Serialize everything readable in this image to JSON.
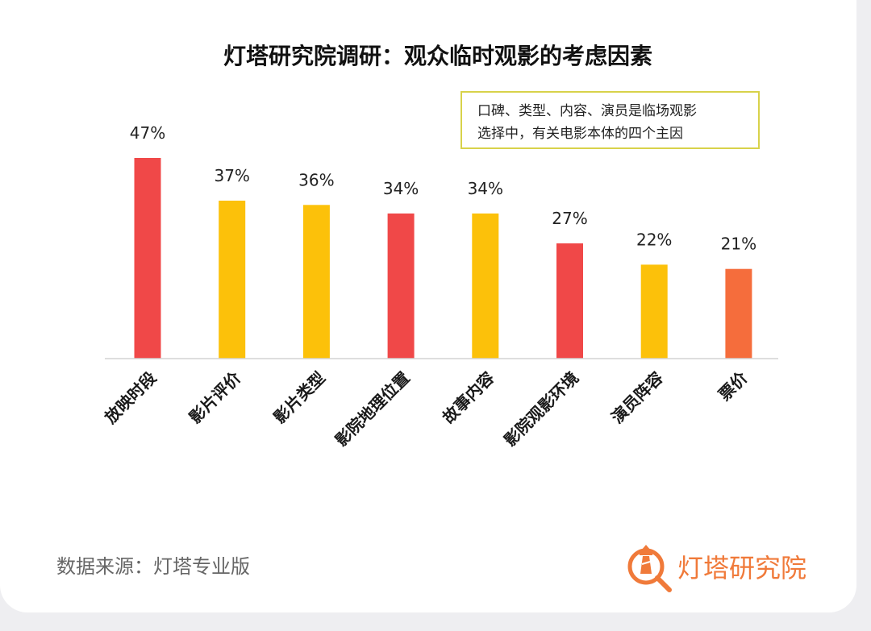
{
  "chart_data": {
    "type": "bar",
    "title": "灯塔研究院调研：观众临时观影的考虑因素",
    "categories": [
      "放映时段",
      "影片评价",
      "影片类型",
      "影院地理位置",
      "故事内容",
      "影院观影环境",
      "演员阵容",
      "票价"
    ],
    "values": [
      47,
      37,
      36,
      34,
      34,
      27,
      22,
      21
    ],
    "value_labels": [
      "47%",
      "37%",
      "36%",
      "34%",
      "34%",
      "27%",
      "22%",
      "21%"
    ],
    "bar_colors": [
      "#f04848",
      "#fcc10a",
      "#fcc10a",
      "#f04848",
      "#fcc10a",
      "#f04848",
      "#fcc10a",
      "#f56d3c"
    ],
    "ylim": [
      0,
      47
    ],
    "grid": false,
    "legend": "none",
    "annotation": {
      "lines": [
        "口碑、类型、内容、演员是临场观影",
        "选择中，有关电影本体的四个主因"
      ],
      "border_color": "#d8d24a"
    }
  },
  "footer": {
    "source": "数据来源：灯塔专业版",
    "brand": "灯塔研究院",
    "brand_icon": "lighthouse-magnifier-icon",
    "brand_color": "#f07a3a"
  }
}
